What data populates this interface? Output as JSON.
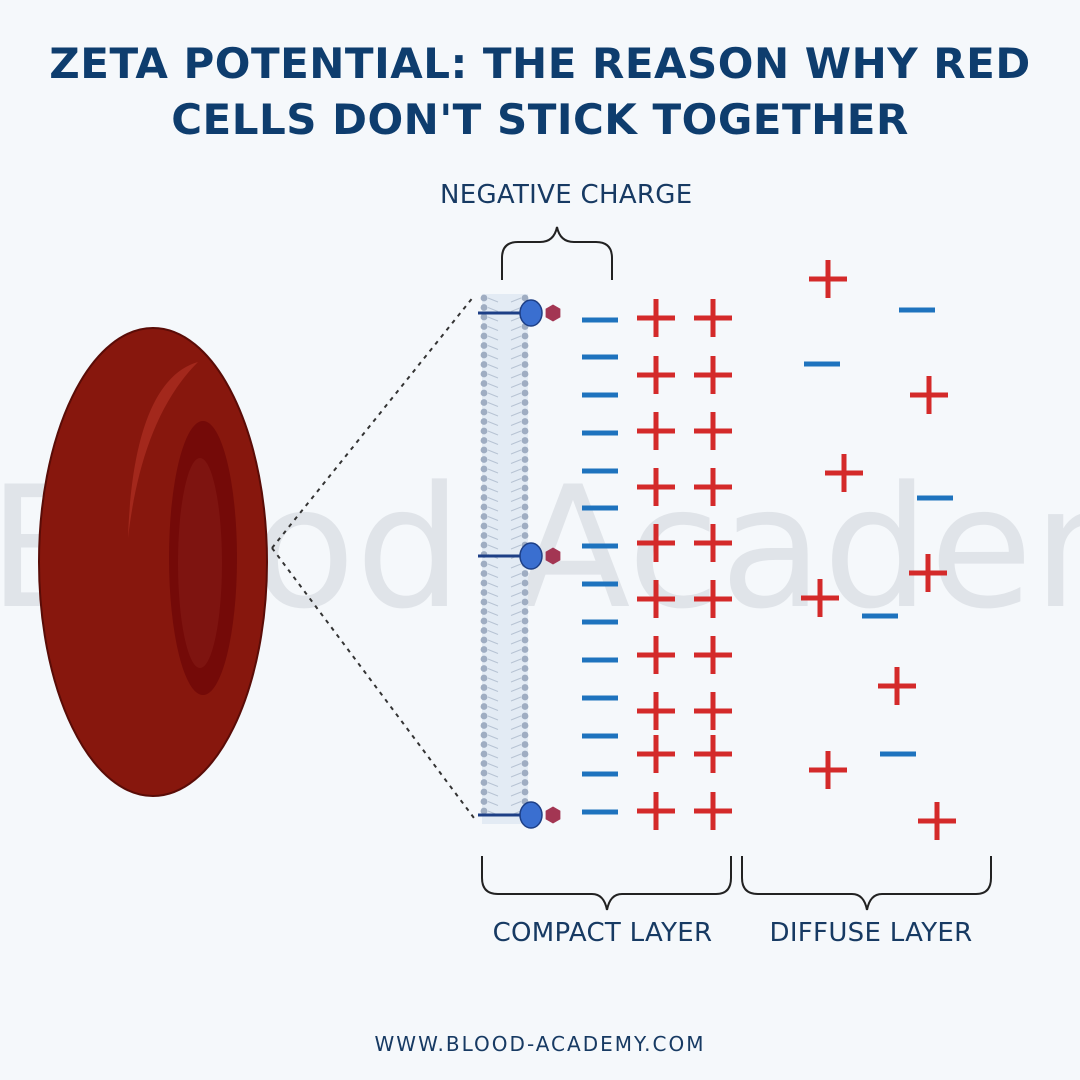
{
  "title": {
    "line1": "ZETA POTENTIAL: THE REASON WHY RED",
    "line2": "CELLS DON'T STICK TOGETHER"
  },
  "labels": {
    "negative_charge": "NEGATIVE CHARGE",
    "compact_layer": "COMPACT LAYER",
    "diffuse_layer": "DIFFUSE LAYER"
  },
  "watermark": "Blood Academy",
  "footer": "WWW.BLOOD-ACADEMY.COM",
  "colors": {
    "background": "#f5f8fb",
    "title": "#0e3d6e",
    "red_cell": "#87170d",
    "red_cell_inner": "#740a08",
    "negative": "#1e73be",
    "positive": "#d42a2a",
    "membrane": "#9fadc2",
    "protein": "#3a6fd0",
    "sialic_acid": "#a33653"
  },
  "icons": {
    "red_cell": "red-blood-cell-icon",
    "membrane": "phospholipid-bilayer-icon",
    "protein": "membrane-protein-icon",
    "sialic_acid": "sialic-acid-icon",
    "negative": "minus-sign-icon",
    "positive": "plus-sign-icon"
  }
}
